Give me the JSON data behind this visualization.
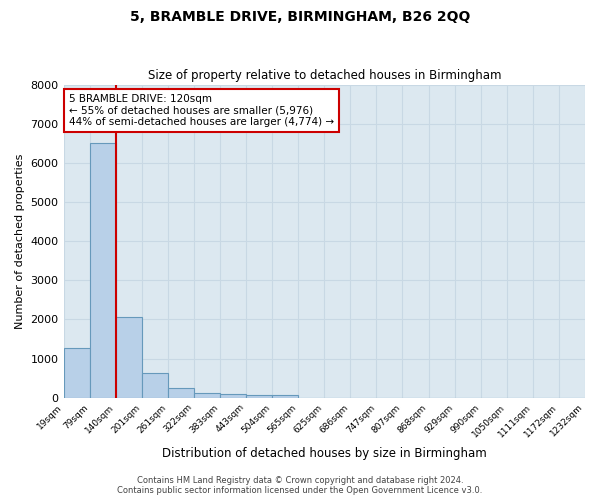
{
  "title": "5, BRAMBLE DRIVE, BIRMINGHAM, B26 2QQ",
  "subtitle": "Size of property relative to detached houses in Birmingham",
  "xlabel": "Distribution of detached houses by size in Birmingham",
  "ylabel": "Number of detached properties",
  "bar_values": [
    1280,
    6500,
    2050,
    630,
    250,
    130,
    90,
    60,
    60,
    0,
    0,
    0,
    0,
    0,
    0,
    0,
    0,
    0,
    0,
    0
  ],
  "categories": [
    "19sqm",
    "79sqm",
    "140sqm",
    "201sqm",
    "261sqm",
    "322sqm",
    "383sqm",
    "443sqm",
    "504sqm",
    "565sqm",
    "625sqm",
    "686sqm",
    "747sqm",
    "807sqm",
    "868sqm",
    "929sqm",
    "990sqm",
    "1050sqm",
    "1111sqm",
    "1172sqm",
    "1232sqm"
  ],
  "bar_color": "#b8d0e8",
  "bar_edge_color": "#6699bb",
  "background_color": "#dce8f0",
  "grid_color": "#c8d8e4",
  "red_line_x": 2.0,
  "annotation_text": "5 BRAMBLE DRIVE: 120sqm\n← 55% of detached houses are smaller (5,976)\n44% of semi-detached houses are larger (4,774) →",
  "annotation_box_color": "#ffffff",
  "annotation_box_edge_color": "#cc0000",
  "ylim": [
    0,
    8000
  ],
  "yticks": [
    0,
    1000,
    2000,
    3000,
    4000,
    5000,
    6000,
    7000,
    8000
  ],
  "footer_line1": "Contains HM Land Registry data © Crown copyright and database right 2024.",
  "footer_line2": "Contains public sector information licensed under the Open Government Licence v3.0."
}
